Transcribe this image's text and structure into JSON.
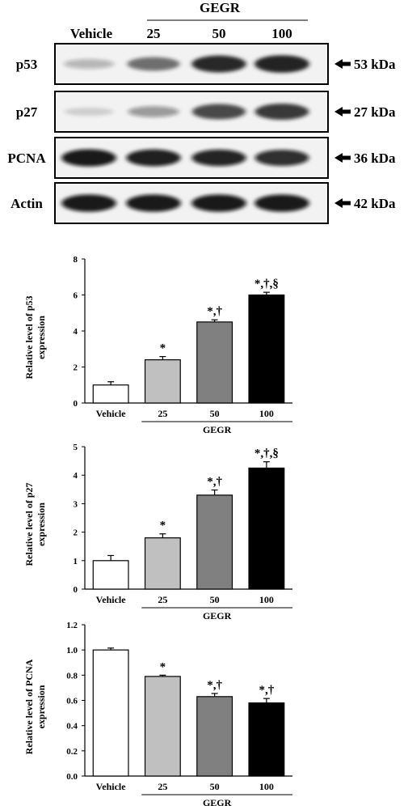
{
  "blot": {
    "group_label": "GEGR",
    "lanes": [
      "Vehicle",
      "25",
      "50",
      "100"
    ],
    "rows": [
      {
        "protein": "p53",
        "mw": "53 kDa",
        "band_intensity": [
          0.28,
          0.62,
          0.92,
          0.97
        ],
        "band_color": "#1a1a1a"
      },
      {
        "protein": "p27",
        "mw": "27 kDa",
        "band_intensity": [
          0.15,
          0.4,
          0.78,
          0.85
        ],
        "band_color": "#1a1a1a"
      },
      {
        "protein": "PCNA",
        "mw": "36 kDa",
        "band_intensity": [
          0.95,
          0.92,
          0.9,
          0.86
        ],
        "band_color": "#111111"
      },
      {
        "protein": "Actin",
        "mw": "42 kDa",
        "band_intensity": [
          0.95,
          0.95,
          0.95,
          0.95
        ],
        "band_color": "#111111"
      }
    ]
  },
  "chart_data": [
    {
      "type": "bar",
      "title": "",
      "ylabel_lines": [
        "Relative level of p53",
        "expression"
      ],
      "categories": [
        "Vehicle",
        "25",
        "50",
        "100"
      ],
      "group_label": "GEGR",
      "values": [
        1.0,
        2.4,
        4.5,
        6.0
      ],
      "errors": [
        0.18,
        0.18,
        0.12,
        0.15
      ],
      "annotations": [
        "",
        "*",
        "*,†",
        "*,†,§"
      ],
      "ylim": [
        0,
        8
      ],
      "yticks": [
        0,
        2,
        4,
        6,
        8
      ],
      "ytick_labels": [
        "0",
        "2",
        "4",
        "6",
        "8"
      ],
      "bar_colors": [
        "#ffffff",
        "#c0c0c0",
        "#808080",
        "#000000"
      ]
    },
    {
      "type": "bar",
      "title": "",
      "ylabel_lines": [
        "Relative level of p27",
        "expression"
      ],
      "categories": [
        "Vehicle",
        "25",
        "50",
        "100"
      ],
      "group_label": "GEGR",
      "values": [
        1.0,
        1.8,
        3.3,
        4.25
      ],
      "errors": [
        0.18,
        0.14,
        0.18,
        0.22
      ],
      "annotations": [
        "",
        "*",
        "*,†",
        "*,†,§"
      ],
      "ylim": [
        0,
        5
      ],
      "yticks": [
        0,
        1,
        2,
        3,
        4,
        5
      ],
      "ytick_labels": [
        "0",
        "1",
        "2",
        "3",
        "4",
        "5"
      ],
      "bar_colors": [
        "#ffffff",
        "#c0c0c0",
        "#808080",
        "#000000"
      ]
    },
    {
      "type": "bar",
      "title": "",
      "ylabel_lines": [
        "Relative level of PCNA",
        "expression"
      ],
      "categories": [
        "Vehicle",
        "25",
        "50",
        "100"
      ],
      "group_label": "GEGR",
      "values": [
        1.0,
        0.79,
        0.63,
        0.58
      ],
      "errors": [
        0.015,
        0.01,
        0.025,
        0.035
      ],
      "annotations": [
        "",
        "*",
        "*,†",
        "*,†"
      ],
      "ylim": [
        0,
        1.2
      ],
      "yticks": [
        0,
        0.2,
        0.4,
        0.6,
        0.8,
        1.0,
        1.2
      ],
      "ytick_labels": [
        "0.0",
        "0.2",
        "0.4",
        "0.6",
        "0.8",
        "1.0",
        "1.2"
      ],
      "bar_colors": [
        "#ffffff",
        "#c0c0c0",
        "#808080",
        "#000000"
      ]
    }
  ]
}
